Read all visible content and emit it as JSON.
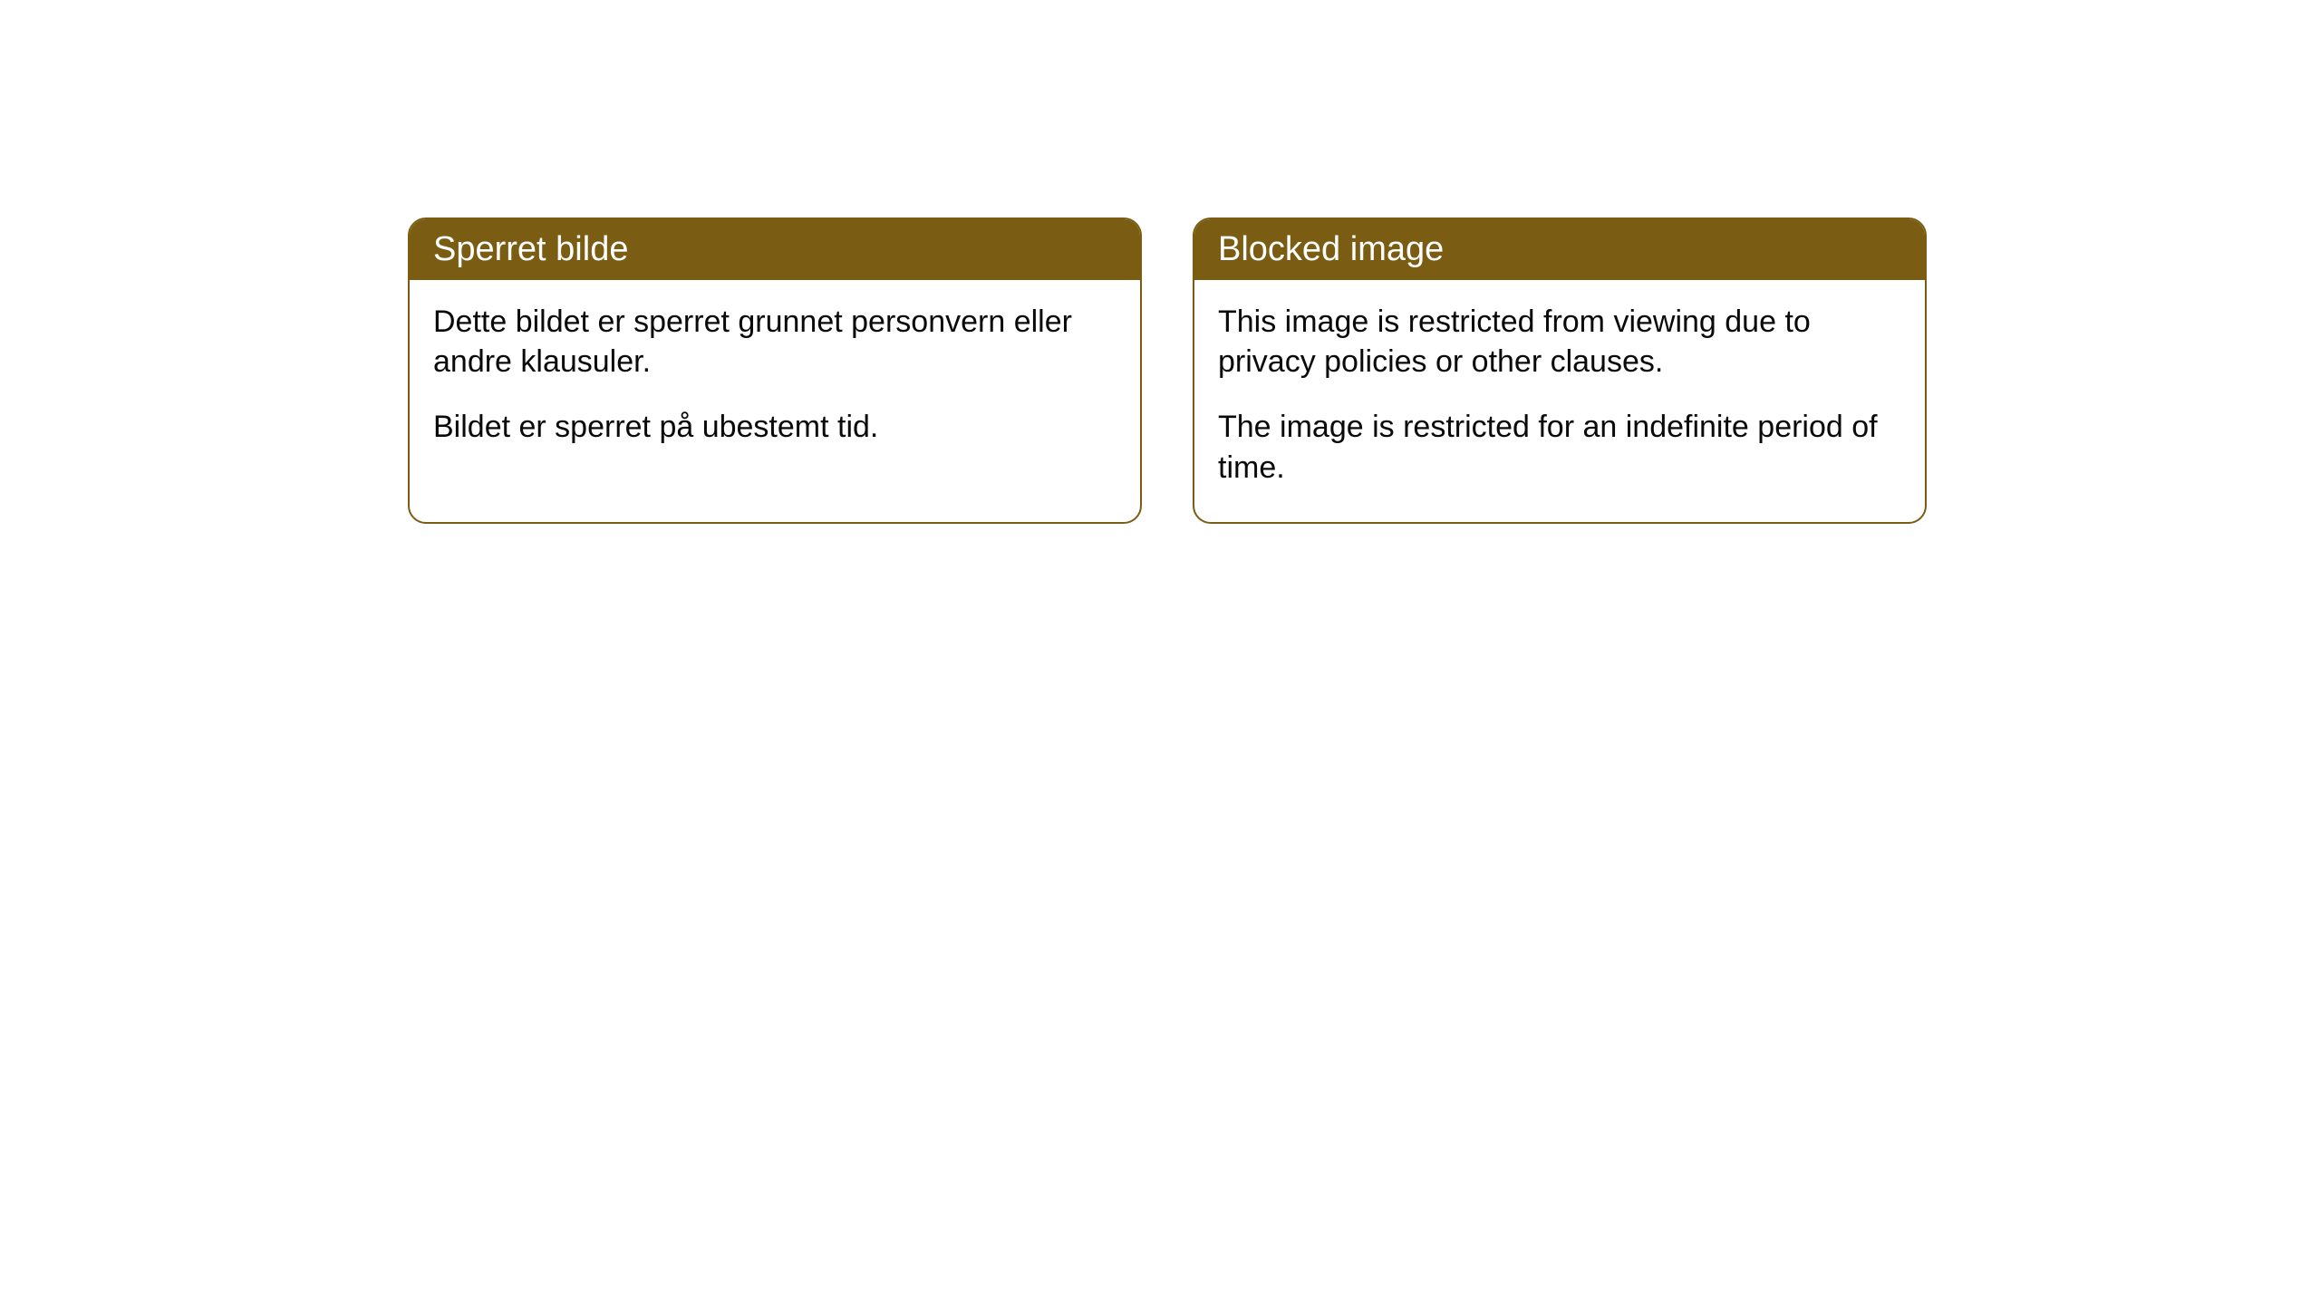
{
  "cards": [
    {
      "title": "Sperret bilde",
      "paragraph1": "Dette bildet er sperret grunnet personvern eller andre klausuler.",
      "paragraph2": "Bildet er sperret på ubestemt tid."
    },
    {
      "title": "Blocked image",
      "paragraph1": "This image is restricted from viewing due to privacy policies or other clauses.",
      "paragraph2": "The image is restricted for an indefinite period of time."
    }
  ],
  "styling": {
    "header_background": "#7a5c12",
    "header_text_color": "#ffffff",
    "body_text_color": "#0a0a0a",
    "card_border_color": "#7a5c12",
    "card_background": "#ffffff",
    "page_background": "#ffffff",
    "border_radius": 20,
    "header_fontsize": 38,
    "body_fontsize": 34
  }
}
